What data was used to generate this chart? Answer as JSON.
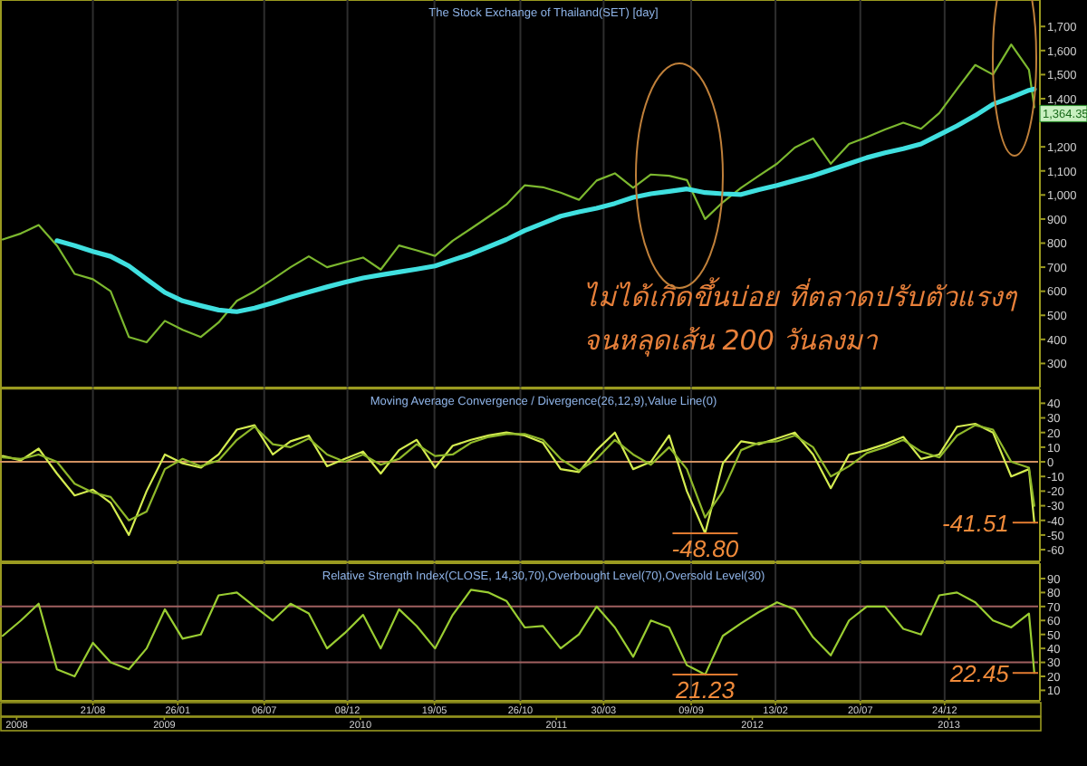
{
  "chart_data": [
    {
      "type": "line",
      "title": "The Stock Exchange of Thailand(SET) [day]",
      "x": [
        "2008-03-06",
        "2008-04-09",
        "2008-05-12",
        "2008-06-15",
        "2008-07-18",
        "2008-08-21",
        "2008-09-23",
        "2008-10-27",
        "2008-11-29",
        "2009-01-02",
        "2009-02-04",
        "2009-03-10",
        "2009-04-12",
        "2009-05-16",
        "2009-06-18",
        "2009-07-22",
        "2009-08-24",
        "2009-09-27",
        "2009-10-31",
        "2009-12-03",
        "2010-01-06",
        "2010-02-08",
        "2010-03-14",
        "2010-04-16",
        "2010-05-20",
        "2010-06-22",
        "2010-07-26",
        "2010-08-28",
        "2010-09-30",
        "2010-11-03",
        "2010-12-07",
        "2011-01-09",
        "2011-02-12",
        "2011-03-17",
        "2011-04-20",
        "2011-05-24",
        "2011-06-26",
        "2011-07-30",
        "2011-09-01",
        "2011-10-05",
        "2011-11-07",
        "2011-12-11",
        "2012-01-13",
        "2012-02-16",
        "2012-03-20",
        "2012-04-23",
        "2012-05-26",
        "2012-06-29",
        "2012-08-01",
        "2012-09-04",
        "2012-10-08",
        "2012-11-10",
        "2012-12-14",
        "2013-01-16",
        "2013-02-19",
        "2013-03-24",
        "2013-04-27",
        "2013-05-30",
        "2013-06-09"
      ],
      "series": [
        {
          "color": "#7cb82f",
          "values": [
            815,
            840,
            875,
            790,
            672,
            650,
            600,
            410,
            388,
            477,
            440,
            410,
            470,
            560,
            600,
            650,
            700,
            745,
            700,
            720,
            740,
            690,
            790,
            770,
            747,
            810,
            860,
            910,
            960,
            1040,
            1032,
            1010,
            980,
            1060,
            1090,
            1030,
            1085,
            1080,
            1062,
            900,
            970,
            1030,
            1080,
            1130,
            1197,
            1235,
            1130,
            1212,
            1240,
            1272,
            1300,
            1275,
            1340,
            1440,
            1540,
            1500,
            1625,
            1520,
            1364.35
          ]
        },
        {
          "color": "#40e0e0",
          "values": [
            null,
            null,
            null,
            810,
            790,
            765,
            745,
            705,
            650,
            595,
            560,
            540,
            522,
            515,
            530,
            552,
            575,
            597,
            618,
            637,
            655,
            668,
            680,
            692,
            705,
            730,
            755,
            785,
            815,
            852,
            882,
            912,
            930,
            945,
            965,
            990,
            1005,
            1015,
            1025,
            1010,
            1005,
            1002,
            1022,
            1040,
            1060,
            1080,
            1105,
            1130,
            1155,
            1175,
            1192,
            1212,
            1250,
            1287,
            1330,
            1377,
            1405,
            1435,
            1440
          ]
        }
      ],
      "xlim": [
        "2008-03-01",
        "2013-06-16"
      ],
      "ylim": [
        200,
        1810
      ],
      "yticks": [
        300,
        400,
        500,
        600,
        700,
        800,
        900,
        {
          "value": 1000,
          "label": "1,000"
        },
        {
          "value": 1100,
          "label": "1,100"
        },
        {
          "value": 1200,
          "label": "1,200"
        },
        {
          "value": 1400,
          "label": "1,400"
        },
        {
          "value": 1500,
          "label": "1,500"
        },
        {
          "value": 1600,
          "label": "1,600"
        },
        {
          "value": 1700,
          "label": "1,700"
        }
      ],
      "xticks": [
        {
          "value": "2008-08-21",
          "label": null
        },
        {
          "value": "2009-01-26",
          "label": null
        },
        {
          "value": "2009-07-06",
          "label": null
        },
        {
          "value": "2009-12-08",
          "label": null
        },
        {
          "value": "2010-05-19",
          "label": null
        },
        {
          "value": "2010-10-26",
          "label": null
        },
        {
          "value": "2011-03-30",
          "label": null
        },
        {
          "value": "2011-09-09",
          "label": null
        },
        {
          "value": "2012-02-13",
          "label": null
        },
        {
          "value": "2012-07-20",
          "label": null
        },
        {
          "value": "2012-12-24",
          "label": null
        }
      ],
      "grid": "x",
      "tick_labels": "y",
      "annotations": [
        {
          "text": "1,364.35",
          "x": "2013-06-09",
          "y": 1364.35
        },
        "ไม่ได้เกิดขึ้นบ่อย ที่ตลาดปรับตัวแรงๆ",
        "จนหลุดเส้น 200 วันลงมา"
      ]
    },
    {
      "type": "line",
      "title": "Moving Average Convergence / Divergence(26,12,9),Value Line(0)",
      "x": [
        "2008-03-06",
        "2008-04-09",
        "2008-05-12",
        "2008-06-15",
        "2008-07-18",
        "2008-08-21",
        "2008-09-23",
        "2008-10-27",
        "2008-11-29",
        "2009-01-02",
        "2009-02-04",
        "2009-03-10",
        "2009-04-12",
        "2009-05-16",
        "2009-06-18",
        "2009-07-22",
        "2009-08-24",
        "2009-09-27",
        "2009-10-31",
        "2009-12-03",
        "2010-01-06",
        "2010-02-08",
        "2010-03-14",
        "2010-04-16",
        "2010-05-20",
        "2010-06-22",
        "2010-07-26",
        "2010-08-28",
        "2010-09-30",
        "2010-11-03",
        "2010-12-07",
        "2011-01-09",
        "2011-02-12",
        "2011-03-17",
        "2011-04-20",
        "2011-05-24",
        "2011-06-26",
        "2011-07-30",
        "2011-09-01",
        "2011-10-05",
        "2011-11-07",
        "2011-12-11",
        "2012-01-13",
        "2012-02-16",
        "2012-03-20",
        "2012-04-23",
        "2012-05-26",
        "2012-06-29",
        "2012-08-01",
        "2012-09-04",
        "2012-10-08",
        "2012-11-10",
        "2012-12-14",
        "2013-01-16",
        "2013-02-19",
        "2013-03-24",
        "2013-04-27",
        "2013-05-30",
        "2013-06-09"
      ],
      "series": [
        {
          "color": "#d4ec50",
          "values": [
            4,
            1,
            9,
            -8,
            -23,
            -19,
            -28,
            -50,
            -20,
            5,
            -1,
            -4,
            5,
            22,
            25,
            5,
            14,
            18,
            -3,
            2,
            7,
            -8,
            8,
            15,
            -4,
            11,
            15,
            18,
            20,
            18,
            13,
            -5,
            -7,
            8,
            20,
            -5,
            0,
            18,
            -20,
            -48.8,
            -1,
            14,
            12,
            16,
            20,
            5,
            -18,
            5,
            8,
            12,
            17,
            2,
            5,
            24,
            26,
            20,
            -10,
            -5,
            -41.51
          ]
        },
        {
          "color": "#8fb82a",
          "values": [
            3,
            2,
            5,
            0,
            -15,
            -21,
            -24,
            -40,
            -34,
            -5,
            2,
            -3,
            1,
            15,
            24,
            12,
            10,
            16,
            5,
            0,
            5,
            -2,
            2,
            12,
            4,
            5,
            13,
            17,
            19,
            19,
            15,
            2,
            -6,
            2,
            15,
            5,
            -2,
            10,
            -5,
            -38,
            -20,
            8,
            13,
            14,
            18,
            10,
            -10,
            -3,
            6,
            10,
            15,
            7,
            3,
            18,
            25,
            22,
            0,
            -4,
            -30
          ]
        }
      ],
      "xlim": [
        "2008-03-01",
        "2013-06-16"
      ],
      "ylim": [
        -68,
        50
      ],
      "yticks": [
        -60,
        -50,
        -40,
        -30,
        -20,
        -10,
        0,
        10,
        20,
        30,
        40
      ],
      "xticks": [
        {
          "value": "2008-08-21",
          "label": null
        },
        {
          "value": "2009-01-26",
          "label": null
        },
        {
          "value": "2009-07-06",
          "label": null
        },
        {
          "value": "2009-12-08",
          "label": null
        },
        {
          "value": "2010-05-19",
          "label": null
        },
        {
          "value": "2010-10-26",
          "label": null
        },
        {
          "value": "2011-03-30",
          "label": null
        },
        {
          "value": "2011-09-09",
          "label": null
        },
        {
          "value": "2012-02-13",
          "label": null
        },
        {
          "value": "2012-07-20",
          "label": null
        },
        {
          "value": "2012-12-24",
          "label": null
        }
      ],
      "grid": "x",
      "tick_labels": "y",
      "ref_lines": [
        {
          "axis": "y",
          "value": 0,
          "color": "#d09060"
        }
      ],
      "annotations": [
        {
          "text": "-48.80",
          "x": "2011-10-05",
          "y": -48.8
        },
        {
          "text": "-41.51",
          "x": "2013-06-09",
          "y": -41.51
        }
      ]
    },
    {
      "type": "line",
      "title": "Relative Strength Index(CLOSE, 14,30,70),Overbought Level(70),Oversold Level(30)",
      "x": [
        "2008-03-06",
        "2008-04-09",
        "2008-05-12",
        "2008-06-15",
        "2008-07-18",
        "2008-08-21",
        "2008-09-23",
        "2008-10-27",
        "2008-11-29",
        "2009-01-02",
        "2009-02-04",
        "2009-03-10",
        "2009-04-12",
        "2009-05-16",
        "2009-06-18",
        "2009-07-22",
        "2009-08-24",
        "2009-09-27",
        "2009-10-31",
        "2009-12-03",
        "2010-01-06",
        "2010-02-08",
        "2010-03-14",
        "2010-04-16",
        "2010-05-20",
        "2010-06-22",
        "2010-07-26",
        "2010-08-28",
        "2010-09-30",
        "2010-11-03",
        "2010-12-07",
        "2011-01-09",
        "2011-02-12",
        "2011-03-17",
        "2011-04-20",
        "2011-05-24",
        "2011-06-26",
        "2011-07-30",
        "2011-09-01",
        "2011-10-05",
        "2011-11-07",
        "2011-12-11",
        "2012-01-13",
        "2012-02-16",
        "2012-03-20",
        "2012-04-23",
        "2012-05-26",
        "2012-06-29",
        "2012-08-01",
        "2012-09-04",
        "2012-10-08",
        "2012-11-10",
        "2012-12-14",
        "2013-01-16",
        "2013-02-19",
        "2013-03-24",
        "2013-04-27",
        "2013-05-30",
        "2013-06-09"
      ],
      "series": [
        {
          "color": "#9acd32",
          "values": [
            49,
            60,
            72,
            25,
            20,
            44,
            30,
            25,
            40,
            68,
            47,
            50,
            78,
            80,
            70,
            60,
            72,
            65,
            40,
            51,
            64,
            40,
            68,
            56,
            40,
            64,
            82,
            80,
            74,
            55,
            56,
            40,
            50,
            70,
            55,
            34,
            60,
            55,
            28,
            21.23,
            49,
            58,
            66,
            73,
            68,
            48,
            35,
            60,
            70,
            70,
            54,
            50,
            78,
            80,
            73,
            60,
            55,
            65,
            22.45
          ]
        }
      ],
      "xlim": [
        "2008-03-01",
        "2013-06-16"
      ],
      "ylim": [
        2.5,
        101
      ],
      "yticks": [
        10,
        20,
        30,
        40,
        50,
        60,
        70,
        80,
        90
      ],
      "xticks": [
        {
          "value": "2008-08-21",
          "label": "21/08"
        },
        {
          "value": "2009-01-26",
          "label": "26/01"
        },
        {
          "value": "2009-07-06",
          "label": "06/07"
        },
        {
          "value": "2009-12-08",
          "label": "08/12"
        },
        {
          "value": "2010-05-19",
          "label": "19/05"
        },
        {
          "value": "2010-10-26",
          "label": "26/10"
        },
        {
          "value": "2011-03-30",
          "label": "30/03"
        },
        {
          "value": "2011-09-09",
          "label": "09/09"
        },
        {
          "value": "2012-02-13",
          "label": "13/02"
        },
        {
          "value": "2012-07-20",
          "label": "20/07"
        },
        {
          "value": "2012-12-24",
          "label": "24/12"
        }
      ],
      "x2lim": [
        "2008-03-01",
        "2013-06-16"
      ],
      "x2ticks": [
        {
          "value": "2008-04",
          "label": "2008"
        },
        {
          "value": "2009",
          "label": "2009"
        },
        {
          "value": "2010",
          "label": "2010"
        },
        {
          "value": "2011",
          "label": "2011"
        },
        {
          "value": "2012",
          "label": "2012"
        },
        {
          "value": "2013",
          "label": "2013"
        }
      ],
      "grid": "x",
      "ref_lines": [
        {
          "axis": "y",
          "value": 70,
          "color": "#a06060"
        },
        {
          "axis": "y",
          "value": 30,
          "color": "#a06060"
        }
      ],
      "annotations": [
        {
          "text": "21.23",
          "x": "2011-10-05",
          "y": 21.23
        },
        {
          "text": "22.45",
          "x": "2013-06-09",
          "y": 22.45
        }
      ]
    }
  ]
}
